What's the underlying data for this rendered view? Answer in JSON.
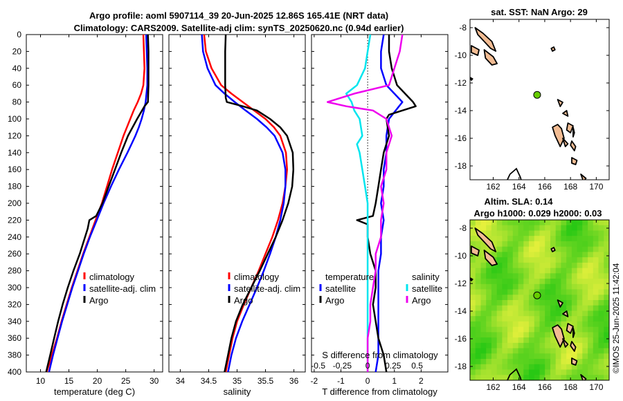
{
  "title": {
    "line1": "Argo profile: aoml 5907114_39 20-Jun-2025 12.86S 165.41E (NRT data)",
    "line2": "Climatology: CARS2009. Satellite-adj clim: synTS_20250620.nc (0.94d earlier)"
  },
  "credit": "©IMOS 25-Jun-2025 11:42:04",
  "colors": {
    "climatology": "#ff0000",
    "satellite": "#0000ff",
    "argo": "#000000",
    "sal_satellite": "#00e5ee",
    "sal_argo": "#ee00ee",
    "float_marker": "#66cc00",
    "land": "#f2bc93"
  },
  "depth_axis": {
    "ticks": [
      0,
      20,
      40,
      60,
      80,
      100,
      120,
      140,
      160,
      180,
      200,
      220,
      240,
      260,
      280,
      300,
      320,
      340,
      360,
      380,
      400
    ],
    "ylim": [
      0,
      400
    ]
  },
  "chart_data": [
    {
      "type": "line",
      "name": "temperature",
      "xlabel": "temperature (deg C)",
      "xlim": [
        7.5,
        31.5
      ],
      "xticks": [
        10,
        15,
        20,
        25,
        30
      ],
      "legend": [
        "climatology",
        "satellite-adj. clim",
        "Argo"
      ],
      "series": [
        {
          "name": "climatology",
          "depth": [
            0,
            20,
            40,
            60,
            70,
            80,
            90,
            100,
            110,
            120,
            130,
            140,
            160,
            180,
            200,
            220,
            240,
            260,
            280,
            300,
            320,
            340,
            360,
            380,
            400
          ],
          "values": [
            28.1,
            28.2,
            28.3,
            28.1,
            27.7,
            27.1,
            26.4,
            25.8,
            25.2,
            24.6,
            24.1,
            23.6,
            22.6,
            21.7,
            20.8,
            19.7,
            18.6,
            17.5,
            16.5,
            15.5,
            14.6,
            13.7,
            12.9,
            12.0,
            11.1
          ]
        },
        {
          "name": "satellite-adj. clim",
          "depth": [
            0,
            20,
            40,
            60,
            80,
            90,
            100,
            110,
            120,
            130,
            140,
            160,
            180,
            200,
            220,
            240,
            260,
            280,
            300,
            320,
            340,
            360,
            380,
            400
          ],
          "values": [
            28.6,
            28.7,
            28.8,
            28.8,
            28.5,
            28.2,
            27.8,
            27.3,
            26.7,
            26.0,
            25.3,
            23.8,
            22.4,
            21.1,
            19.9,
            18.7,
            17.6,
            16.6,
            15.6,
            14.7,
            13.8,
            13.0,
            12.2,
            11.5
          ]
        },
        {
          "name": "Argo",
          "depth": [
            0,
            20,
            40,
            60,
            80,
            85,
            100,
            120,
            140,
            160,
            180,
            200,
            215,
            220,
            230,
            260,
            280,
            300,
            320,
            340,
            360,
            380,
            400
          ],
          "values": [
            28.9,
            29.0,
            29.0,
            29.0,
            28.9,
            28.3,
            27.0,
            25.4,
            24.2,
            23.1,
            22.0,
            20.9,
            19.8,
            18.6,
            18.3,
            16.9,
            15.8,
            14.8,
            13.9,
            13.1,
            12.4,
            11.7,
            11.0
          ]
        }
      ]
    },
    {
      "type": "line",
      "name": "salinity",
      "xlabel": "salinity",
      "xlim": [
        33.8,
        36.2
      ],
      "xticks": [
        34,
        34.5,
        35,
        35.5,
        36
      ],
      "legend": [
        "climatology",
        "satellite-adj. clim",
        "Argo"
      ],
      "series": [
        {
          "name": "climatology",
          "depth": [
            0,
            20,
            40,
            60,
            70,
            80,
            90,
            100,
            110,
            120,
            140,
            160,
            180,
            200,
            220,
            240,
            260,
            280,
            300,
            320,
            340,
            360,
            380,
            400
          ],
          "values": [
            34.42,
            34.45,
            34.55,
            34.72,
            34.9,
            35.1,
            35.3,
            35.5,
            35.65,
            35.76,
            35.86,
            35.88,
            35.85,
            35.8,
            35.72,
            35.62,
            35.5,
            35.38,
            35.25,
            35.12,
            35.0,
            34.92,
            34.86,
            34.8
          ]
        },
        {
          "name": "satellite-adj. clim",
          "depth": [
            0,
            20,
            40,
            60,
            70,
            80,
            90,
            100,
            110,
            120,
            140,
            160,
            180,
            200,
            220,
            240,
            260,
            280,
            300,
            320,
            340,
            360,
            380,
            400
          ],
          "values": [
            34.38,
            34.4,
            34.48,
            34.62,
            34.78,
            34.96,
            35.15,
            35.35,
            35.52,
            35.66,
            35.8,
            35.85,
            35.85,
            35.82,
            35.76,
            35.68,
            35.58,
            35.47,
            35.35,
            35.22,
            35.09,
            34.98,
            34.9,
            34.84
          ]
        },
        {
          "name": "Argo",
          "depth": [
            0,
            20,
            40,
            60,
            75,
            80,
            85,
            90,
            100,
            110,
            120,
            140,
            160,
            180,
            200,
            220,
            240,
            260,
            280,
            300,
            320,
            340,
            360,
            380,
            400
          ],
          "values": [
            34.8,
            34.79,
            34.79,
            34.79,
            34.8,
            34.82,
            35.1,
            35.35,
            35.58,
            35.76,
            35.88,
            35.98,
            35.99,
            35.97,
            35.9,
            35.8,
            35.68,
            35.54,
            35.4,
            35.25,
            35.1,
            34.98,
            34.9,
            34.84,
            34.78
          ]
        }
      ]
    },
    {
      "type": "line",
      "name": "difference",
      "xlabel": "T difference from climatology",
      "xlabel_top": "S difference from climatology",
      "xlim": [
        -2.1,
        3.0
      ],
      "xticks": [
        -2,
        -1,
        0,
        1,
        2
      ],
      "sticks_labels": [
        "-0.5",
        "-0.25",
        "0",
        "0.25",
        "0.5"
      ],
      "sticks_at": [
        -1.85,
        -0.95,
        0.0,
        0.95,
        1.85
      ],
      "legend_t_heading": "temperature",
      "legend_s_heading": "salinity",
      "legend_t": [
        "satellite",
        "Argo"
      ],
      "legend_s": [
        "satellite",
        "Argo"
      ],
      "series": [
        {
          "name": "T satellite",
          "depth": [
            0,
            20,
            40,
            60,
            80,
            100,
            120,
            140,
            160,
            180,
            200,
            220,
            240,
            260,
            280,
            300,
            320,
            340,
            360,
            380,
            400
          ],
          "values": [
            0.6,
            0.5,
            0.5,
            0.7,
            1.3,
            0.8,
            0.7,
            0.7,
            0.6,
            0.6,
            0.5,
            0.6,
            0.5,
            0.5,
            0.4,
            0.4,
            0.4,
            0.4,
            0.4,
            0.4,
            0.3
          ]
        },
        {
          "name": "T Argo",
          "depth": [
            0,
            20,
            40,
            60,
            80,
            85,
            95,
            100,
            120,
            140,
            160,
            180,
            200,
            215,
            220,
            225,
            240,
            260,
            280,
            300,
            320,
            340,
            360,
            380,
            400
          ],
          "values": [
            0.8,
            0.8,
            0.9,
            1.1,
            1.7,
            1.8,
            0.8,
            0.7,
            0.8,
            0.6,
            0.5,
            0.4,
            0.3,
            0.2,
            -0.4,
            0.0,
            0.0,
            0.1,
            0.3,
            0.3,
            0.2,
            0.3,
            0.4,
            0.6,
            0.7
          ]
        },
        {
          "name": "S satellite",
          "depth": [
            0,
            20,
            40,
            60,
            70,
            80,
            90,
            100,
            120,
            130,
            140,
            160,
            180,
            200,
            220,
            240,
            260,
            280,
            300,
            320,
            340,
            360,
            380,
            400
          ],
          "values": [
            0.1,
            0.0,
            -0.1,
            -0.4,
            -0.8,
            -0.6,
            -0.5,
            -0.3,
            -0.2,
            -0.4,
            -0.3,
            -0.2,
            -0.1,
            0.0,
            0.0,
            0.0,
            0.0,
            0.0,
            0.0,
            0.0,
            0.0,
            0.0,
            0.0,
            0.0
          ]
        },
        {
          "name": "S Argo",
          "depth": [
            0,
            20,
            40,
            60,
            70,
            80,
            85,
            90,
            100,
            120,
            140,
            160,
            180,
            200,
            220,
            240,
            260,
            280,
            300,
            320,
            340,
            360,
            380,
            400
          ],
          "values": [
            1.3,
            1.2,
            1.0,
            0.8,
            -0.5,
            -1.5,
            -0.8,
            0.2,
            0.7,
            0.9,
            0.7,
            0.7,
            0.5,
            0.6,
            0.5,
            0.5,
            0.3,
            0.3,
            0.2,
            0.1,
            0.1,
            0.0,
            0.0,
            0.0
          ]
        }
      ]
    },
    {
      "type": "map",
      "name": "sst-map",
      "title": "sat. SST: NaN Argo: 29",
      "xlim": [
        160.2,
        171
      ],
      "ylim": [
        -19,
        -7.4
      ],
      "xticks": [
        162,
        164,
        166,
        168,
        170
      ],
      "yticks": [
        -8,
        -10,
        -12,
        -14,
        -16,
        -18
      ],
      "argo_position": {
        "lon": 165.41,
        "lat": -12.86
      }
    },
    {
      "type": "map",
      "name": "sla-map",
      "title": "Altim. SLA: 0.14",
      "subtitle": "Argo h1000: 0.029 h2000: 0.03",
      "xlim": [
        160.2,
        171
      ],
      "ylim": [
        -19,
        -7.4
      ],
      "xticks": [
        162,
        164,
        166,
        168,
        170
      ],
      "yticks": [
        -8,
        -10,
        -12,
        -14,
        -16,
        -18
      ],
      "argo_position": {
        "lon": 165.41,
        "lat": -12.86
      }
    }
  ]
}
